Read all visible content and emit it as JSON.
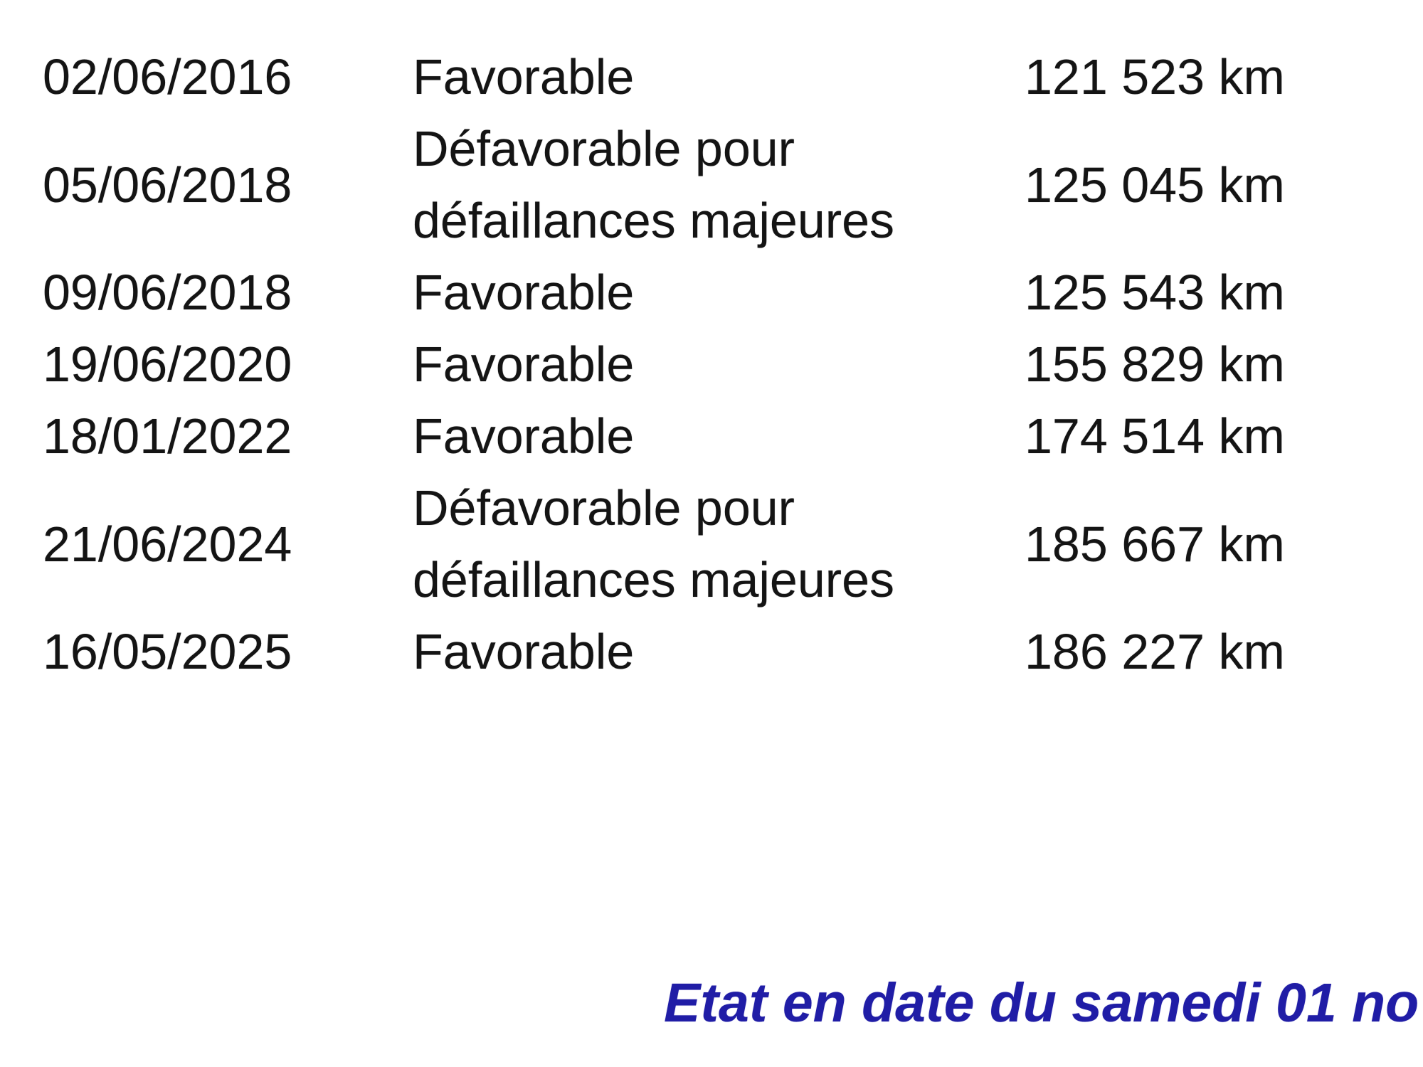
{
  "page": {
    "background_color": "#ffffff",
    "text_color": "#141414"
  },
  "table": {
    "description": "vehicle-inspection-history",
    "columns": [
      "date",
      "result",
      "mileage"
    ],
    "rows": [
      {
        "date": "02/06/2016",
        "result": "Favorable",
        "result_lines": [
          "Favorable"
        ],
        "km": "121 523 km"
      },
      {
        "date": "05/06/2018",
        "result": "Défavorable pour défaillances majeures",
        "result_lines": [
          "Défavorable pour",
          "défaillances majeures"
        ],
        "km": "125 045 km"
      },
      {
        "date": "09/06/2018",
        "result": "Favorable",
        "result_lines": [
          "Favorable"
        ],
        "km": "125 543 km"
      },
      {
        "date": "19/06/2020",
        "result": "Favorable",
        "result_lines": [
          "Favorable"
        ],
        "km": "155 829 km"
      },
      {
        "date": "18/01/2022",
        "result": "Favorable",
        "result_lines": [
          "Favorable"
        ],
        "km": "174 514 km"
      },
      {
        "date": "21/06/2024",
        "result": "Défavorable pour défaillances majeures",
        "result_lines": [
          "Défavorable pour",
          "défaillances majeures"
        ],
        "km": "185 667 km"
      },
      {
        "date": "16/05/2025",
        "result": "Favorable",
        "result_lines": [
          "Favorable"
        ],
        "km": "186 227 km"
      }
    ]
  },
  "footer": {
    "text": "Etat en date du samedi 01 no",
    "color": "#201da6"
  }
}
